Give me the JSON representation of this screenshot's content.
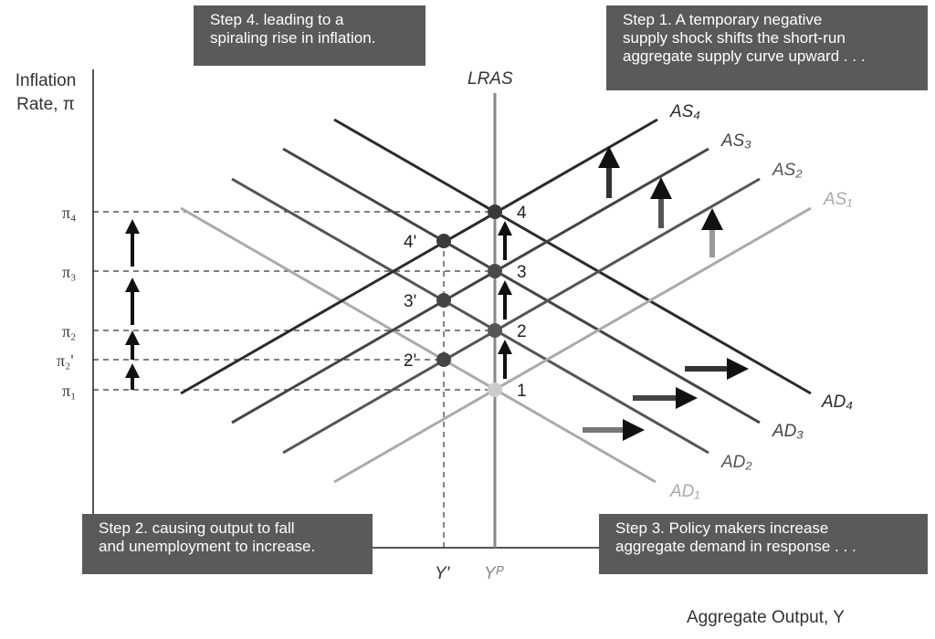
{
  "axes": {
    "y_label_line1": "Inflation",
    "y_label_line2": "Rate, π",
    "x_label": "Aggregate Output, Y"
  },
  "lras_label": "LRAS",
  "y_ticks": [
    {
      "label": "π₄"
    },
    {
      "label": "π₃"
    },
    {
      "label": "π₂"
    },
    {
      "label": "π₂'"
    },
    {
      "label": "π₁"
    }
  ],
  "x_ticks": [
    {
      "label": "Y'"
    },
    {
      "label": "Yᴾ"
    }
  ],
  "as_curves": [
    {
      "label": "AS₄",
      "color": "#2b2b2b"
    },
    {
      "label": "AS₃",
      "color": "#444444"
    },
    {
      "label": "AS₂",
      "color": "#555555"
    },
    {
      "label": "AS₁",
      "color": "#aaaaaa"
    }
  ],
  "ad_curves": [
    {
      "label": "AD₄",
      "color": "#2b2b2b"
    },
    {
      "label": "AD₃",
      "color": "#444444"
    },
    {
      "label": "AD₂",
      "color": "#555555"
    },
    {
      "label": "AD₁",
      "color": "#aaaaaa"
    }
  ],
  "points": [
    {
      "label": "1"
    },
    {
      "label": "2"
    },
    {
      "label": "3"
    },
    {
      "label": "4"
    },
    {
      "label": "2'"
    },
    {
      "label": "3'"
    },
    {
      "label": "4'"
    }
  ],
  "steps": {
    "step4": [
      "Step 4. leading to a",
      "spiraling rise in inflation."
    ],
    "step1": [
      "Step 1. A temporary negative",
      "supply shock shifts the short-run",
      "aggregate supply curve upward . . ."
    ],
    "step2": [
      "Step 2. causing output to fall",
      "and unemployment to increase."
    ],
    "step3": [
      "Step 3. Policy makers increase",
      "aggregate demand in response . . ."
    ]
  }
}
